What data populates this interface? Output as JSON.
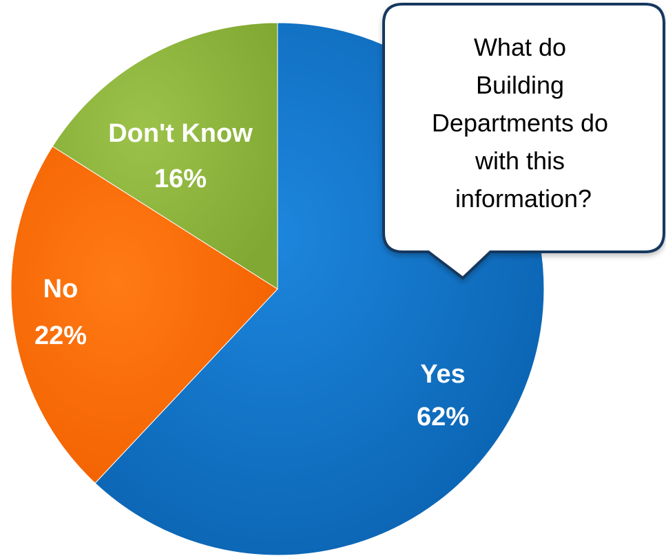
{
  "chart_data": {
    "type": "pie",
    "slices": [
      {
        "label": "Yes",
        "pct_text": "62%",
        "value": 62,
        "color": "#0A6EC4"
      },
      {
        "label": "No",
        "pct_text": "22%",
        "value": 22,
        "color": "#FF6A00"
      },
      {
        "label": "Don't Know",
        "pct_text": "16%",
        "value": 16,
        "color": "#8DB339"
      }
    ],
    "start": "12 o'clock",
    "direction": "clockwise"
  },
  "callout": {
    "lines": [
      "What do",
      "Building",
      "Departments do",
      "with this",
      "information?"
    ],
    "border_color": "#17375E"
  }
}
